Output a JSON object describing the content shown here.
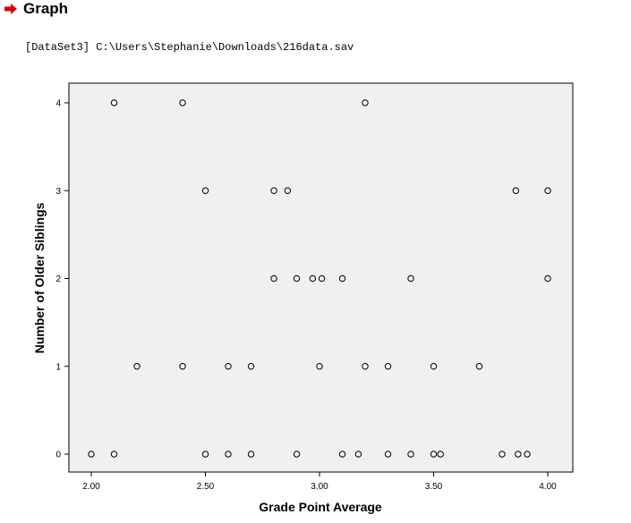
{
  "heading": {
    "title": "Graph",
    "icon": "right-arrow-icon",
    "icon_color": "#d40000"
  },
  "dataset_line": "[DataSet3] C:\\Users\\Stephanie\\Downloads\\216data.sav",
  "chart_data": {
    "type": "scatter",
    "title": "",
    "xlabel": "Grade Point Average",
    "ylabel": "Number of Older Siblings",
    "xlim": [
      1.9,
      4.1
    ],
    "ylim": [
      -0.15,
      4.2
    ],
    "xticks": [
      "2.00",
      "2.50",
      "3.00",
      "3.50",
      "4.00"
    ],
    "xtick_values": [
      2.0,
      2.5,
      3.0,
      3.5,
      4.0
    ],
    "yticks": [
      "0",
      "1",
      "2",
      "3",
      "4"
    ],
    "ytick_values": [
      0,
      1,
      2,
      3,
      4
    ],
    "grid": false,
    "plot_background": "#f0f0f0",
    "marker": "open-circle",
    "points": [
      {
        "x": 2.1,
        "y": 4
      },
      {
        "x": 2.4,
        "y": 4
      },
      {
        "x": 3.2,
        "y": 4
      },
      {
        "x": 2.5,
        "y": 3
      },
      {
        "x": 2.8,
        "y": 3
      },
      {
        "x": 2.86,
        "y": 3
      },
      {
        "x": 3.86,
        "y": 3
      },
      {
        "x": 4.0,
        "y": 3
      },
      {
        "x": 2.8,
        "y": 2
      },
      {
        "x": 2.9,
        "y": 2
      },
      {
        "x": 2.97,
        "y": 2
      },
      {
        "x": 3.01,
        "y": 2
      },
      {
        "x": 3.1,
        "y": 2
      },
      {
        "x": 3.4,
        "y": 2
      },
      {
        "x": 4.0,
        "y": 2
      },
      {
        "x": 2.2,
        "y": 1
      },
      {
        "x": 2.4,
        "y": 1
      },
      {
        "x": 2.6,
        "y": 1
      },
      {
        "x": 2.7,
        "y": 1
      },
      {
        "x": 3.0,
        "y": 1
      },
      {
        "x": 3.2,
        "y": 1
      },
      {
        "x": 3.3,
        "y": 1
      },
      {
        "x": 3.5,
        "y": 1
      },
      {
        "x": 3.7,
        "y": 1
      },
      {
        "x": 2.0,
        "y": 0
      },
      {
        "x": 2.1,
        "y": 0
      },
      {
        "x": 2.5,
        "y": 0
      },
      {
        "x": 2.6,
        "y": 0
      },
      {
        "x": 2.7,
        "y": 0
      },
      {
        "x": 2.9,
        "y": 0
      },
      {
        "x": 3.1,
        "y": 0
      },
      {
        "x": 3.17,
        "y": 0
      },
      {
        "x": 3.3,
        "y": 0
      },
      {
        "x": 3.4,
        "y": 0
      },
      {
        "x": 3.5,
        "y": 0
      },
      {
        "x": 3.53,
        "y": 0
      },
      {
        "x": 3.8,
        "y": 0
      },
      {
        "x": 3.87,
        "y": 0
      },
      {
        "x": 3.91,
        "y": 0
      }
    ]
  }
}
